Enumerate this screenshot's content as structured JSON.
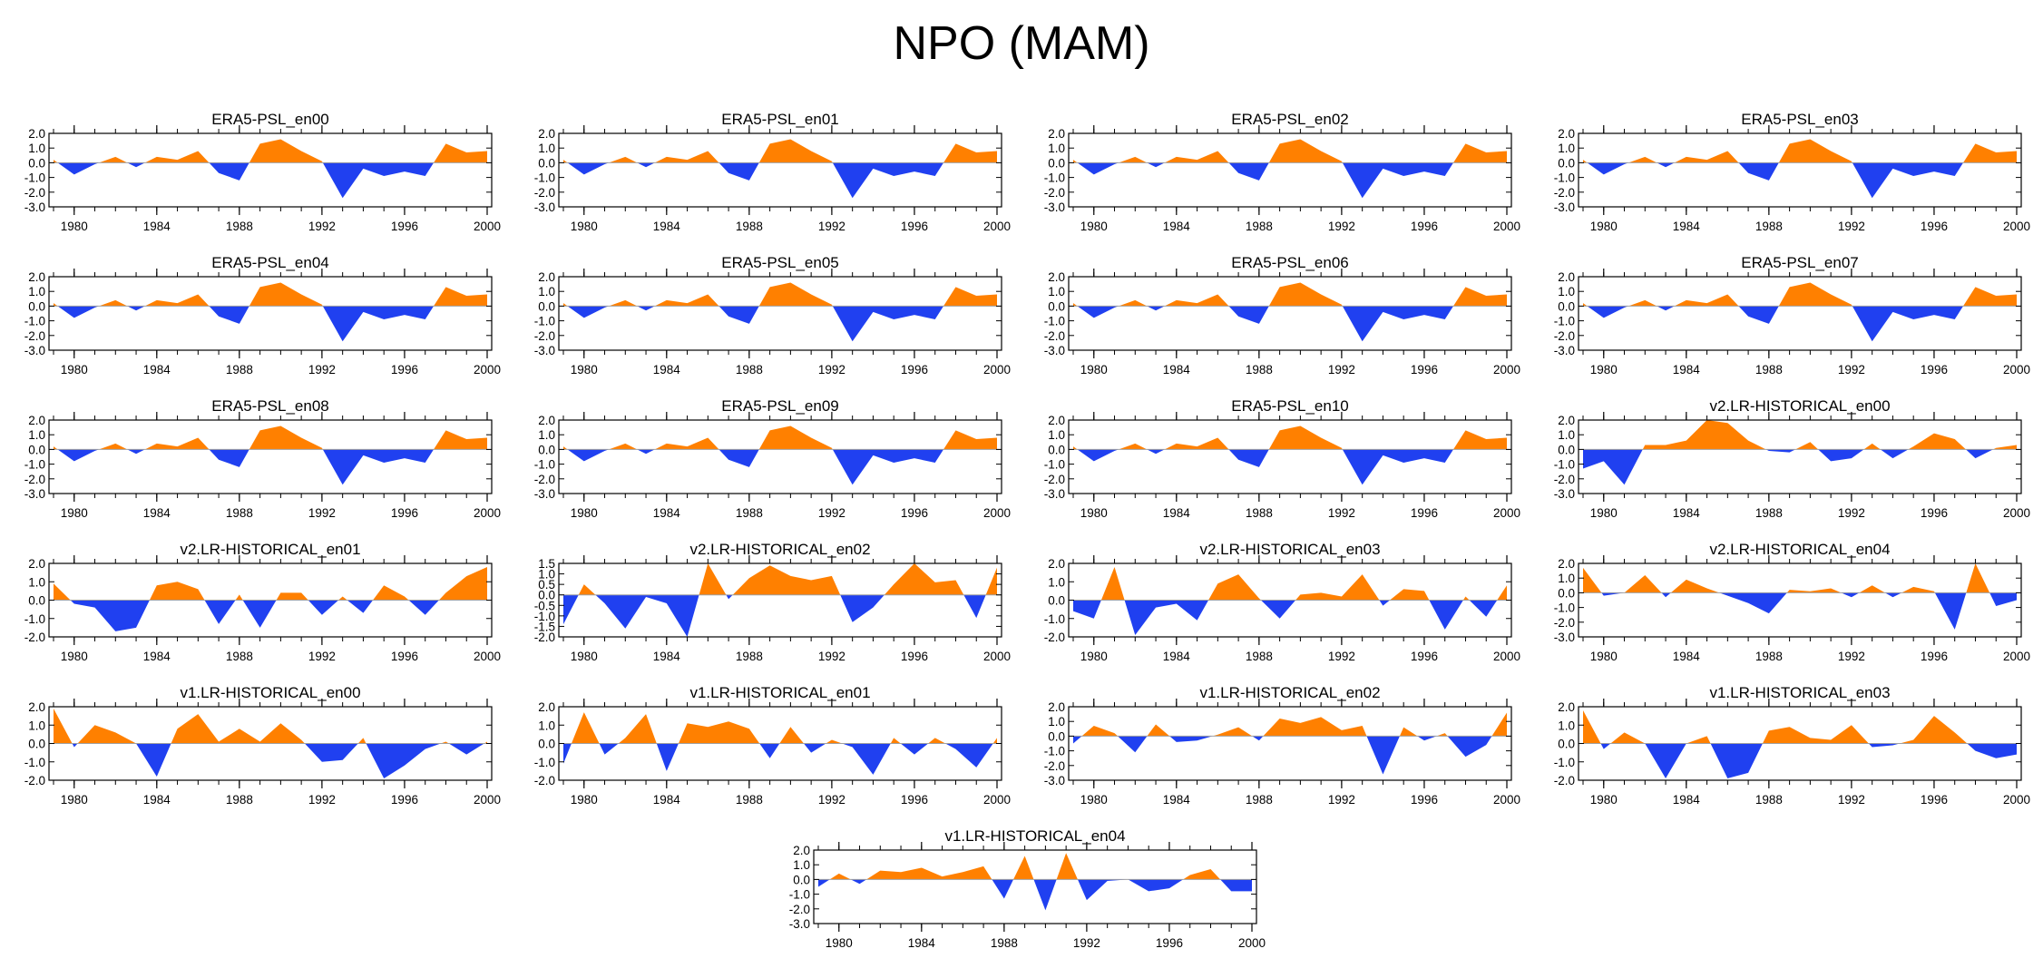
{
  "title": "NPO (MAM)",
  "colors": {
    "positive": "#ff8000",
    "negative": "#2040f0",
    "axis": "#000000",
    "zero_line": "#a0a0a0"
  },
  "chart_data": {
    "type": "area",
    "xlim": [
      1979,
      2000
    ],
    "xticks": [
      1980,
      1984,
      1988,
      1992,
      1996,
      2000
    ],
    "x": [
      1979,
      1980,
      1981,
      1982,
      1983,
      1984,
      1985,
      1986,
      1987,
      1988,
      1989,
      1990,
      1991,
      1992,
      1993,
      1994,
      1995,
      1996,
      1997,
      1998,
      1999,
      2000
    ],
    "panels": [
      {
        "title": "ERA5-PSL_en00",
        "ylim": [
          -3,
          2
        ],
        "yticks": [
          "2.0",
          "1.0",
          "0.0",
          "-1.0",
          "-2.0",
          "-3.0"
        ],
        "values": [
          0.2,
          -0.8,
          -0.1,
          0.4,
          -0.3,
          0.4,
          0.2,
          0.8,
          -0.7,
          -1.2,
          1.3,
          1.6,
          0.8,
          0.1,
          -2.4,
          -0.4,
          -0.9,
          -0.6,
          -0.9,
          1.3,
          0.7,
          0.8
        ]
      },
      {
        "title": "ERA5-PSL_en01",
        "ylim": [
          -3,
          2
        ],
        "yticks": [
          "2.0",
          "1.0",
          "0.0",
          "-1.0",
          "-2.0",
          "-3.0"
        ],
        "values": [
          0.2,
          -0.8,
          -0.1,
          0.4,
          -0.3,
          0.4,
          0.2,
          0.8,
          -0.7,
          -1.2,
          1.3,
          1.6,
          0.8,
          0.1,
          -2.4,
          -0.4,
          -0.9,
          -0.6,
          -0.9,
          1.3,
          0.7,
          0.8
        ]
      },
      {
        "title": "ERA5-PSL_en02",
        "ylim": [
          -3,
          2
        ],
        "yticks": [
          "2.0",
          "1.0",
          "0.0",
          "-1.0",
          "-2.0",
          "-3.0"
        ],
        "values": [
          0.2,
          -0.8,
          -0.1,
          0.4,
          -0.3,
          0.4,
          0.2,
          0.8,
          -0.7,
          -1.2,
          1.3,
          1.6,
          0.8,
          0.1,
          -2.4,
          -0.4,
          -0.9,
          -0.6,
          -0.9,
          1.3,
          0.7,
          0.8
        ]
      },
      {
        "title": "ERA5-PSL_en03",
        "ylim": [
          -3,
          2
        ],
        "yticks": [
          "2.0",
          "1.0",
          "0.0",
          "-1.0",
          "-2.0",
          "-3.0"
        ],
        "values": [
          0.2,
          -0.8,
          -0.1,
          0.4,
          -0.3,
          0.4,
          0.2,
          0.8,
          -0.7,
          -1.2,
          1.3,
          1.6,
          0.8,
          0.1,
          -2.4,
          -0.4,
          -0.9,
          -0.6,
          -0.9,
          1.3,
          0.7,
          0.8
        ]
      },
      {
        "title": "ERA5-PSL_en04",
        "ylim": [
          -3,
          2
        ],
        "yticks": [
          "2.0",
          "1.0",
          "0.0",
          "-1.0",
          "-2.0",
          "-3.0"
        ],
        "values": [
          0.2,
          -0.8,
          -0.1,
          0.4,
          -0.3,
          0.4,
          0.2,
          0.8,
          -0.7,
          -1.2,
          1.3,
          1.6,
          0.8,
          0.1,
          -2.4,
          -0.4,
          -0.9,
          -0.6,
          -0.9,
          1.3,
          0.7,
          0.8
        ]
      },
      {
        "title": "ERA5-PSL_en05",
        "ylim": [
          -3,
          2
        ],
        "yticks": [
          "2.0",
          "1.0",
          "0.0",
          "-1.0",
          "-2.0",
          "-3.0"
        ],
        "values": [
          0.2,
          -0.8,
          -0.1,
          0.4,
          -0.3,
          0.4,
          0.2,
          0.8,
          -0.7,
          -1.2,
          1.3,
          1.6,
          0.8,
          0.1,
          -2.4,
          -0.4,
          -0.9,
          -0.6,
          -0.9,
          1.3,
          0.7,
          0.8
        ]
      },
      {
        "title": "ERA5-PSL_en06",
        "ylim": [
          -3,
          2
        ],
        "yticks": [
          "2.0",
          "1.0",
          "0.0",
          "-1.0",
          "-2.0",
          "-3.0"
        ],
        "values": [
          0.2,
          -0.8,
          -0.1,
          0.4,
          -0.3,
          0.4,
          0.2,
          0.8,
          -0.7,
          -1.2,
          1.3,
          1.6,
          0.8,
          0.1,
          -2.4,
          -0.4,
          -0.9,
          -0.6,
          -0.9,
          1.3,
          0.7,
          0.8
        ]
      },
      {
        "title": "ERA5-PSL_en07",
        "ylim": [
          -3,
          2
        ],
        "yticks": [
          "2.0",
          "1.0",
          "0.0",
          "-1.0",
          "-2.0",
          "-3.0"
        ],
        "values": [
          0.2,
          -0.8,
          -0.1,
          0.4,
          -0.3,
          0.4,
          0.2,
          0.8,
          -0.7,
          -1.2,
          1.3,
          1.6,
          0.8,
          0.1,
          -2.4,
          -0.4,
          -0.9,
          -0.6,
          -0.9,
          1.3,
          0.7,
          0.8
        ]
      },
      {
        "title": "ERA5-PSL_en08",
        "ylim": [
          -3,
          2
        ],
        "yticks": [
          "2.0",
          "1.0",
          "0.0",
          "-1.0",
          "-2.0",
          "-3.0"
        ],
        "values": [
          0.2,
          -0.8,
          -0.1,
          0.4,
          -0.3,
          0.4,
          0.2,
          0.8,
          -0.7,
          -1.2,
          1.3,
          1.6,
          0.8,
          0.1,
          -2.4,
          -0.4,
          -0.9,
          -0.6,
          -0.9,
          1.3,
          0.7,
          0.8
        ]
      },
      {
        "title": "ERA5-PSL_en09",
        "ylim": [
          -3,
          2
        ],
        "yticks": [
          "2.0",
          "1.0",
          "0.0",
          "-1.0",
          "-2.0",
          "-3.0"
        ],
        "values": [
          0.2,
          -0.8,
          -0.1,
          0.4,
          -0.3,
          0.4,
          0.2,
          0.8,
          -0.7,
          -1.2,
          1.3,
          1.6,
          0.8,
          0.1,
          -2.4,
          -0.4,
          -0.9,
          -0.6,
          -0.9,
          1.3,
          0.7,
          0.8
        ]
      },
      {
        "title": "ERA5-PSL_en10",
        "ylim": [
          -3,
          2
        ],
        "yticks": [
          "2.0",
          "1.0",
          "0.0",
          "-1.0",
          "-2.0",
          "-3.0"
        ],
        "values": [
          0.2,
          -0.8,
          -0.1,
          0.4,
          -0.3,
          0.4,
          0.2,
          0.8,
          -0.7,
          -1.2,
          1.3,
          1.6,
          0.8,
          0.1,
          -2.4,
          -0.4,
          -0.9,
          -0.6,
          -0.9,
          1.3,
          0.7,
          0.8
        ]
      },
      {
        "title": "v2.LR-HISTORICAL_en00",
        "ylim": [
          -3,
          2
        ],
        "yticks": [
          "2.0",
          "1.0",
          "0.0",
          "-1.0",
          "-2.0",
          "-3.0"
        ],
        "values": [
          -1.3,
          -0.8,
          -2.4,
          0.3,
          0.3,
          0.6,
          2.0,
          1.8,
          0.6,
          -0.1,
          -0.2,
          0.5,
          -0.8,
          -0.6,
          0.4,
          -0.6,
          0.2,
          1.1,
          0.7,
          -0.6,
          0.1,
          0.3
        ]
      },
      {
        "title": "v2.LR-HISTORICAL_en01",
        "ylim": [
          -2,
          2
        ],
        "yticks": [
          "2.0",
          "1.0",
          "0.0",
          "-1.0",
          "-2.0"
        ],
        "values": [
          0.9,
          -0.2,
          -0.4,
          -1.7,
          -1.5,
          0.8,
          1.0,
          0.6,
          -1.3,
          0.3,
          -1.5,
          0.4,
          0.4,
          -0.8,
          0.2,
          -0.7,
          0.8,
          0.2,
          -0.8,
          0.4,
          1.3,
          1.8
        ]
      },
      {
        "title": "v2.LR-HISTORICAL_en02",
        "ylim": [
          -2,
          1.5
        ],
        "yticks": [
          "1.5",
          "1.0",
          "0.5",
          "0.0",
          "-0.5",
          "-1.0",
          "-1.5",
          "-2.0"
        ],
        "values": [
          -1.4,
          0.5,
          -0.4,
          -1.6,
          -0.1,
          -0.4,
          -2.0,
          1.5,
          -0.2,
          0.8,
          1.4,
          0.9,
          0.7,
          0.9,
          -1.3,
          -0.6,
          0.5,
          1.5,
          0.6,
          0.7,
          -1.1,
          1.3
        ]
      },
      {
        "title": "v2.LR-HISTORICAL_en03",
        "ylim": [
          -2,
          2
        ],
        "yticks": [
          "2.0",
          "1.0",
          "0.0",
          "-1.0",
          "-2.0"
        ],
        "values": [
          -0.6,
          -1.0,
          1.8,
          -1.9,
          -0.4,
          -0.2,
          -1.1,
          0.9,
          1.4,
          0.1,
          -1.0,
          0.3,
          0.4,
          0.2,
          1.4,
          -0.3,
          0.6,
          0.5,
          -1.6,
          0.2,
          -0.9,
          0.8
        ]
      },
      {
        "title": "v2.LR-HISTORICAL_en04",
        "ylim": [
          -3,
          2
        ],
        "yticks": [
          "2.0",
          "1.0",
          "0.0",
          "-1.0",
          "-2.0",
          "-3.0"
        ],
        "values": [
          1.7,
          -0.2,
          0.0,
          1.2,
          -0.3,
          0.9,
          0.3,
          -0.2,
          -0.7,
          -1.4,
          0.2,
          0.1,
          0.3,
          -0.3,
          0.5,
          -0.3,
          0.4,
          0.1,
          -2.5,
          2.0,
          -0.9,
          -0.5
        ]
      },
      {
        "title": "v1.LR-HISTORICAL_en00",
        "ylim": [
          -2,
          2
        ],
        "yticks": [
          "2.0",
          "1.0",
          "0.0",
          "-1.0",
          "-2.0"
        ],
        "values": [
          1.9,
          -0.2,
          1.0,
          0.6,
          0.0,
          -1.8,
          0.8,
          1.6,
          0.1,
          0.8,
          0.1,
          1.1,
          0.2,
          -1.0,
          -0.9,
          0.3,
          -1.9,
          -1.2,
          -0.3,
          0.1,
          -0.6,
          0.1
        ]
      },
      {
        "title": "v1.LR-HISTORICAL_en01",
        "ylim": [
          -2,
          2
        ],
        "yticks": [
          "2.0",
          "1.0",
          "0.0",
          "-1.0",
          "-2.0"
        ],
        "values": [
          -1.1,
          1.7,
          -0.6,
          0.3,
          1.6,
          -1.5,
          1.1,
          0.9,
          1.2,
          0.8,
          -0.8,
          0.9,
          -0.5,
          0.2,
          -0.2,
          -1.7,
          0.3,
          -0.6,
          0.3,
          -0.3,
          -1.3,
          0.3
        ]
      },
      {
        "title": "v1.LR-HISTORICAL_en02",
        "ylim": [
          -3,
          2
        ],
        "yticks": [
          "2.0",
          "1.0",
          "0.0",
          "-1.0",
          "-2.0",
          "-3.0"
        ],
        "values": [
          -0.5,
          0.7,
          0.2,
          -1.1,
          0.8,
          -0.4,
          -0.3,
          0.1,
          0.6,
          -0.3,
          1.2,
          0.9,
          1.3,
          0.4,
          0.7,
          -2.6,
          0.6,
          -0.3,
          0.2,
          -1.4,
          -0.6,
          1.6
        ]
      },
      {
        "title": "v1.LR-HISTORICAL_en03",
        "ylim": [
          -2,
          2
        ],
        "yticks": [
          "2.0",
          "1.0",
          "0.0",
          "-1.0",
          "-2.0"
        ],
        "values": [
          1.8,
          -0.3,
          0.6,
          0.0,
          -1.9,
          0.0,
          0.4,
          -1.9,
          -1.6,
          0.7,
          0.9,
          0.3,
          0.2,
          1.0,
          -0.2,
          -0.1,
          0.2,
          1.5,
          0.6,
          -0.4,
          -0.8,
          -0.6
        ]
      },
      {
        "title": "v1.LR-HISTORICAL_en04",
        "ylim": [
          -3,
          2
        ],
        "yticks": [
          "2.0",
          "1.0",
          "0.0",
          "-1.0",
          "-2.0",
          "-3.0"
        ],
        "values": [
          -0.5,
          0.4,
          -0.3,
          0.6,
          0.5,
          0.8,
          0.2,
          0.5,
          0.9,
          -1.3,
          1.6,
          -2.1,
          1.8,
          -1.4,
          -0.1,
          0.0,
          -0.8,
          -0.6,
          0.3,
          0.7,
          -0.8,
          -0.8
        ]
      }
    ]
  }
}
